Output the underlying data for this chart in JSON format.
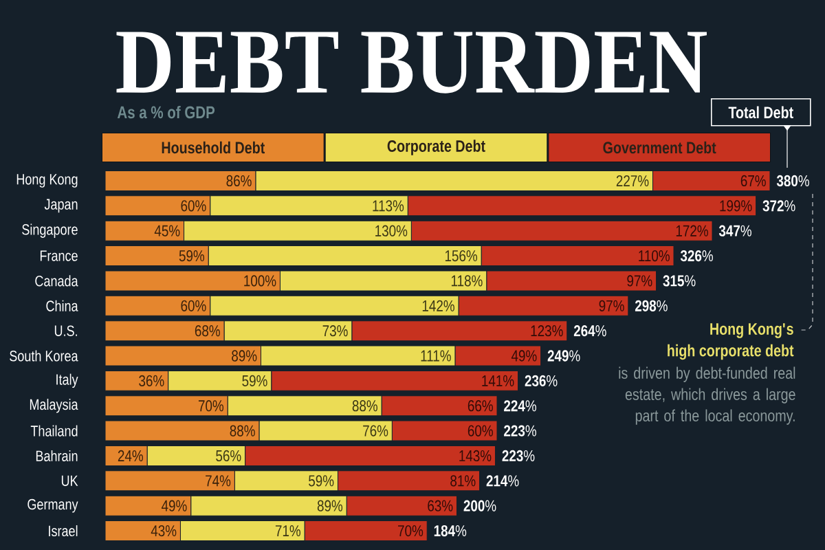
{
  "chart_data": {
    "type": "bar",
    "orientation": "horizontal",
    "stacked": true,
    "title": "DEBT BURDEN",
    "subtitle": "As a % of GDP",
    "categories": [
      "Hong Kong",
      "Japan",
      "Singapore",
      "France",
      "Canada",
      "China",
      "U.S.",
      "South Korea",
      "Italy",
      "Malaysia",
      "Thailand",
      "Bahrain",
      "UK",
      "Germany",
      "Israel"
    ],
    "series": [
      {
        "name": "Household Debt",
        "color": "#e5862e",
        "values": [
          86,
          60,
          45,
          59,
          100,
          60,
          68,
          89,
          36,
          70,
          88,
          24,
          74,
          49,
          43
        ],
        "value_labels": [
          "86%",
          "60%",
          "45%",
          "59%",
          "100%",
          "60%",
          "68%",
          "89%",
          "36%",
          "70%",
          "88%",
          "24%",
          "74%",
          "49%",
          "43%"
        ]
      },
      {
        "name": "Corporate Debt",
        "color": "#ebdc55",
        "values": [
          227,
          113,
          130,
          156,
          118,
          142,
          73,
          111,
          59,
          88,
          76,
          56,
          59,
          89,
          71
        ],
        "value_labels": [
          "227%",
          "113%",
          "130%",
          "156%",
          "118%",
          "142%",
          "73%",
          "111%",
          "59%",
          "88%",
          "76%",
          "56%",
          "59%",
          "89%",
          "71%"
        ]
      },
      {
        "name": "Government Debt",
        "color": "#c7321f",
        "values": [
          67,
          199,
          172,
          110,
          97,
          97,
          123,
          49,
          141,
          66,
          60,
          143,
          81,
          63,
          70
        ],
        "value_labels": [
          "67%",
          "199%",
          "172%",
          "110%",
          "97%",
          "97%",
          "123%",
          "49%",
          "141%",
          "66%",
          "60%",
          "143%",
          "81%",
          "63%",
          "70%"
        ]
      }
    ],
    "totals": [
      "**380**%",
      "**372**%",
      "**347**%",
      "**326**%",
      "**315**%",
      "**298**%",
      "**264**%",
      "**249**%",
      "**236**%",
      "**224**%",
      "**223**%",
      "**223**%",
      "**214**%",
      "**200**%",
      "**184**%"
    ],
    "legend": "top",
    "tick_labels": "y",
    "annotations": [
      "Total Debt",
      "Hong Kong's",
      "high corporate debt",
      "is driven by debt-funded real estate, which drives a large part of the local economy."
    ]
  }
}
